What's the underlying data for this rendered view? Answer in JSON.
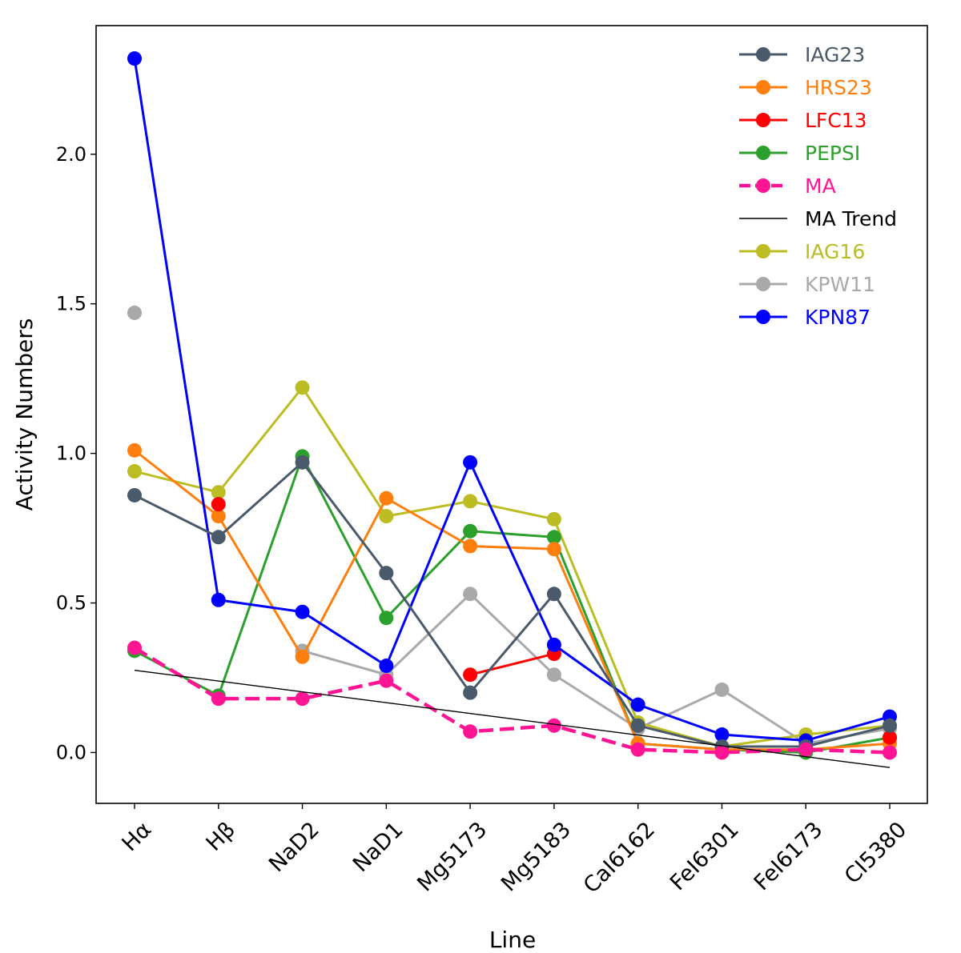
{
  "chart_data": {
    "type": "line",
    "xlabel": "Line",
    "ylabel": "Activity Numbers",
    "ylim": [
      -0.17,
      2.43
    ],
    "yticks": [
      0.0,
      0.5,
      1.0,
      1.5,
      2.0
    ],
    "ytick_labels": [
      "0.0",
      "0.5",
      "1.0",
      "1.5",
      "2.0"
    ],
    "categories": [
      "Hα",
      "Hβ",
      "NaD2",
      "NaD1",
      "Mg5173",
      "Mg5183",
      "CaI6162",
      "FeI6301",
      "FeI6173",
      "CI5380"
    ],
    "legend_position": "top-right",
    "series": [
      {
        "name": "KPW11",
        "color": "#a9a9a9",
        "dashed": false,
        "markers": true,
        "values": [
          1.47,
          null,
          0.34,
          0.26,
          0.53,
          0.26,
          0.08,
          0.21,
          0.03,
          0.08
        ]
      },
      {
        "name": "IAG16",
        "color": "#bcbd22",
        "dashed": false,
        "markers": true,
        "values": [
          0.94,
          0.87,
          1.22,
          0.79,
          0.84,
          0.78,
          0.1,
          0.02,
          0.06,
          0.09
        ]
      },
      {
        "name": "PEPSI",
        "color": "#2ca02c",
        "dashed": false,
        "markers": true,
        "values": [
          0.34,
          0.19,
          0.99,
          0.45,
          0.74,
          0.72,
          0.03,
          0.01,
          0.0,
          0.05
        ]
      },
      {
        "name": "HRS23",
        "color": "#ff7f0e",
        "dashed": false,
        "markers": true,
        "values": [
          1.01,
          0.79,
          0.32,
          0.85,
          0.69,
          0.68,
          0.03,
          0.01,
          0.01,
          0.03
        ]
      },
      {
        "name": "LFC13",
        "color": "#ff0000",
        "dashed": false,
        "markers": true,
        "values": [
          null,
          0.83,
          null,
          null,
          0.26,
          0.33,
          null,
          null,
          null,
          0.05
        ]
      },
      {
        "name": "KPN87",
        "color": "#0000ff",
        "dashed": false,
        "markers": true,
        "values": [
          2.32,
          0.51,
          0.47,
          0.29,
          0.97,
          0.36,
          0.16,
          0.06,
          0.04,
          0.12
        ]
      },
      {
        "name": "IAG23",
        "color": "#4a5a6a",
        "dashed": false,
        "markers": true,
        "values": [
          0.86,
          0.72,
          0.97,
          0.6,
          0.2,
          0.53,
          0.09,
          0.02,
          0.02,
          0.09
        ]
      },
      {
        "name": "MA",
        "color": "#ff1493",
        "dashed": true,
        "markers": true,
        "values": [
          0.35,
          0.18,
          0.18,
          0.24,
          0.07,
          0.09,
          0.01,
          0.0,
          0.01,
          0.0
        ]
      },
      {
        "name": "MA Trend",
        "color": "#000000",
        "dashed": false,
        "markers": false,
        "values": [
          0.275,
          null,
          null,
          null,
          null,
          null,
          null,
          null,
          null,
          -0.05
        ]
      }
    ],
    "legend": [
      {
        "label": "IAG23",
        "color": "#4a5a6a",
        "dashed": false,
        "marker": true
      },
      {
        "label": "HRS23",
        "color": "#ff7f0e",
        "dashed": false,
        "marker": true
      },
      {
        "label": "LFC13",
        "color": "#ff0000",
        "dashed": false,
        "marker": true
      },
      {
        "label": "PEPSI",
        "color": "#2ca02c",
        "dashed": false,
        "marker": true
      },
      {
        "label": "MA",
        "color": "#ff1493",
        "dashed": true,
        "marker": true
      },
      {
        "label": "MA Trend",
        "color": "#000000",
        "dashed": false,
        "marker": false
      },
      {
        "label": "IAG16",
        "color": "#bcbd22",
        "dashed": false,
        "marker": true
      },
      {
        "label": "KPW11",
        "color": "#a9a9a9",
        "dashed": false,
        "marker": true
      },
      {
        "label": "KPN87",
        "color": "#0000ff",
        "dashed": false,
        "marker": true
      }
    ]
  }
}
